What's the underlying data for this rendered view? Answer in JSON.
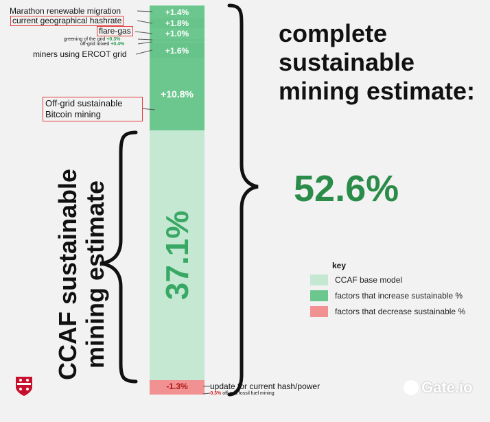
{
  "chart_data": {
    "type": "bar",
    "layout": "stacked-single-column",
    "segments": [
      {
        "label": "Marathon renewable migration",
        "value": 1.4,
        "value_label": "+1.4%",
        "kind": "increase",
        "boxed": false
      },
      {
        "label": "current geographical hashrate",
        "value": 1.8,
        "value_label": "+1.8%",
        "kind": "increase",
        "boxed": true
      },
      {
        "label": "flare-gas",
        "value": 1.0,
        "value_label": "+1.0%",
        "kind": "increase",
        "boxed": true
      },
      {
        "label": "greening of the grid",
        "value": 0.3,
        "value_label": "+0.3%",
        "kind": "increase",
        "boxed": false
      },
      {
        "label": "off-grid mixed",
        "value": 0.4,
        "value_label": "+0.4%",
        "kind": "increase",
        "boxed": false
      },
      {
        "label": "miners using ERCOT grid",
        "value": 1.6,
        "value_label": "+1.6%",
        "kind": "increase",
        "boxed": false
      },
      {
        "label": "Off-grid sustainable Bitcoin mining",
        "value": 10.8,
        "value_label": "+10.8%",
        "kind": "increase",
        "boxed": true
      },
      {
        "label": "CCAF base model",
        "value": 37.1,
        "value_label": "37.1%",
        "kind": "base",
        "boxed": false
      },
      {
        "label": "update for current hash/power",
        "value": -1.3,
        "value_label": "-1.3%",
        "kind": "decrease",
        "boxed": false
      },
      {
        "label": "off-grid fossil fuel mining",
        "value": -0.3,
        "value_label": "-0.3%",
        "kind": "decrease",
        "boxed": false
      }
    ],
    "total": {
      "text": "complete sustainable mining estimate:",
      "value": 52.6,
      "value_label": "52.6%"
    },
    "base_caption": "CCAF sustainable mining estimate",
    "legend": {
      "title": "key",
      "placement": "bottom-right",
      "items": [
        {
          "label": "CCAF base model",
          "color": "#c4e8d2"
        },
        {
          "label": "factors that increase sustainable %",
          "color": "#6cc78e"
        },
        {
          "label": "factors that decrease sustainable %",
          "color": "#f19191"
        }
      ]
    }
  },
  "colors": {
    "base": "#c4e8d2",
    "increase": "#6cc78e",
    "decrease": "#f19191",
    "total_text": "#2b8c4a",
    "box": "#e23b3b"
  },
  "brand": {
    "name": "Gate.io",
    "icon": "gate-logo-icon"
  }
}
